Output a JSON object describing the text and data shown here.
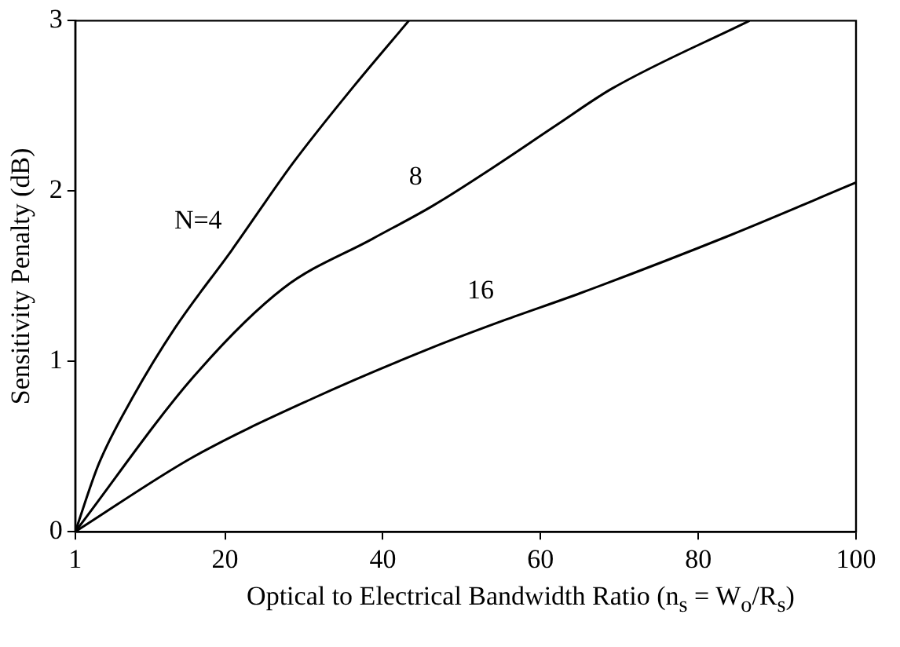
{
  "chart_data": {
    "type": "line",
    "xlabel": "Optical to Electrical Bandwidth Ratio (n$_{s}$ = W$_{o}$/R$_{s}$)",
    "ylabel": "Sensitivity Penalty (dB)",
    "xlim": [
      1,
      100
    ],
    "xticks": [
      1,
      20,
      40,
      60,
      80,
      100
    ],
    "ylim": [
      0,
      3
    ],
    "yticks": [
      0,
      1,
      2,
      3
    ],
    "marker": "none",
    "line_style": "solid",
    "series": [
      {
        "name": "N=4",
        "color": "#000000",
        "x": [
          1,
          4,
          8.3,
          13.7,
          20.8,
          28.7,
          36.4,
          43.3
        ],
        "values": [
          0,
          0.4,
          0.79,
          1.2,
          1.65,
          2.17,
          2.62,
          3
        ]
      },
      {
        "name": "8",
        "color": "#000000",
        "x": [
          1,
          16,
          27.4,
          38.7,
          46.2,
          53.7,
          62.1,
          69,
          86.5
        ],
        "values": [
          0,
          0.91,
          1.43,
          1.72,
          1.91,
          2.13,
          2.39,
          2.6,
          3
        ]
      },
      {
        "name": "16",
        "color": "#000000",
        "x": [
          1,
          16,
          31,
          46.2,
          55.3,
          65,
          84,
          100
        ],
        "values": [
          0,
          0.44,
          0.78,
          1.08,
          1.24,
          1.4,
          1.74,
          2.05
        ]
      }
    ]
  }
}
